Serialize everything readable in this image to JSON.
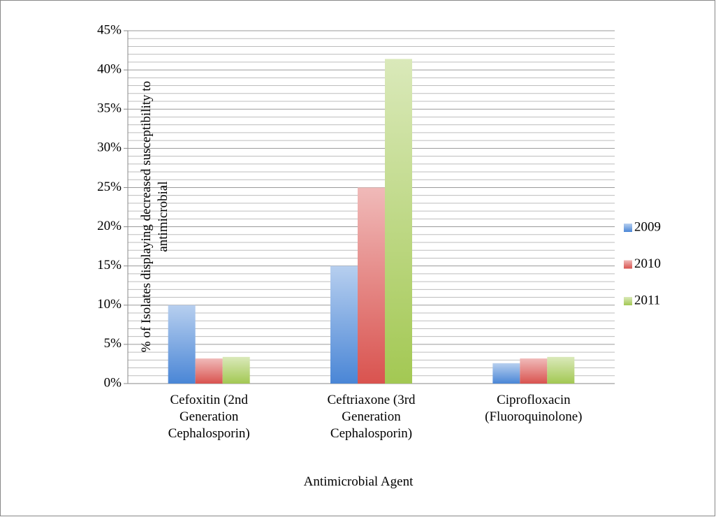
{
  "chart_data": {
    "type": "bar",
    "ylabel": "% of Isolates displaying decreased susceptibility to antimicrobial",
    "xlabel": "Antimicrobial Agent",
    "categories": [
      "Cefoxitin (2nd Generation Cephalosporin)",
      "Ceftriaxone (3rd Generation Cephalosporin)",
      "Ciprofloxacin (Fluoroquinolone)"
    ],
    "series": [
      {
        "name": "2009",
        "color": "#4a86d6",
        "values": [
          10,
          15,
          2.6
        ]
      },
      {
        "name": "2010",
        "color": "#d9534f",
        "values": [
          3.2,
          25,
          3.2
        ]
      },
      {
        "name": "2011",
        "color": "#a3c853",
        "values": [
          3.4,
          41.4,
          3.4
        ]
      }
    ],
    "ylim": [
      0,
      45
    ],
    "yticks": [
      {
        "value": 0,
        "label": "0%"
      },
      {
        "value": 5,
        "label": "5%"
      },
      {
        "value": 10,
        "label": "10%"
      },
      {
        "value": 15,
        "label": "15%"
      },
      {
        "value": 20,
        "label": "20%"
      },
      {
        "value": 25,
        "label": "25%"
      },
      {
        "value": 30,
        "label": "30%"
      },
      {
        "value": 35,
        "label": "35%"
      },
      {
        "value": 40,
        "label": "40%"
      },
      {
        "value": 45,
        "label": "45%"
      }
    ],
    "minor_yticks": [
      1,
      2,
      3,
      4,
      6,
      7,
      8,
      9,
      11,
      12,
      13,
      14,
      16,
      17,
      18,
      19,
      21,
      22,
      23,
      24,
      26,
      27,
      28,
      29,
      31,
      32,
      33,
      34,
      36,
      37,
      38,
      39,
      41,
      42,
      43,
      44
    ],
    "grid": true,
    "legend": "right"
  }
}
